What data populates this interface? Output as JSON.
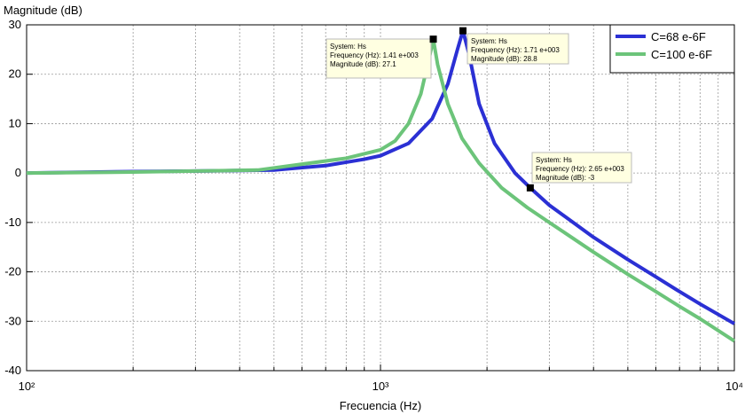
{
  "chart_data": {
    "type": "line",
    "ylabel": "Magnitude (dB)",
    "xlabel": "Frecuencia (Hz)",
    "xscale": "log",
    "grid": true,
    "legend": "upper right",
    "xlim": [
      100,
      10000
    ],
    "ylim": [
      -40,
      30
    ],
    "xticks": [
      {
        "value": 100,
        "label": "10²"
      },
      {
        "value": 1000,
        "label": "10³"
      },
      {
        "value": 10000,
        "label": "10⁴"
      }
    ],
    "xminorticks": [
      200,
      300,
      400,
      500,
      600,
      700,
      800,
      900,
      2000,
      3000,
      4000,
      5000,
      6000,
      7000,
      8000,
      9000
    ],
    "yticks": [
      -40,
      -30,
      -20,
      -10,
      0,
      10,
      20,
      30
    ],
    "series": [
      {
        "name": "C=68 e-6F",
        "color": "#2b30d4",
        "x": [
          100,
          200,
          300,
          500,
          700,
          900,
          1000,
          1200,
          1400,
          1550,
          1650,
          1710,
          1780,
          1900,
          2100,
          2400,
          2650,
          3000,
          4000,
          5000,
          6000,
          7000,
          8000,
          10000
        ],
        "values": [
          0,
          0.3,
          0.4,
          0.6,
          1.5,
          2.8,
          3.5,
          6,
          11,
          18,
          25,
          28.8,
          24,
          14,
          6,
          0,
          -3,
          -6.5,
          -13,
          -17.5,
          -21,
          -24,
          -26.5,
          -30.5
        ]
      },
      {
        "name": "C=100 e-6F",
        "color": "#6cc47a",
        "x": [
          100,
          200,
          300,
          450,
          600,
          800,
          1000,
          1100,
          1200,
          1300,
          1380,
          1410,
          1450,
          1550,
          1700,
          1900,
          2200,
          2600,
          3000,
          4000,
          5000,
          6000,
          7000,
          8000,
          10000
        ],
        "values": [
          0,
          0.2,
          0.4,
          0.6,
          1.8,
          3,
          4.7,
          6.5,
          10,
          16,
          24,
          27.1,
          22,
          14,
          7,
          2,
          -3,
          -7,
          -10,
          -16,
          -20.5,
          -24,
          -27,
          -29.5,
          -34
        ]
      }
    ],
    "annotations": [
      {
        "lines": [
          "System: Hs",
          "Frequency (Hz): 1.41 e+003",
          "Magnitude (dB): 27.1"
        ]
      },
      {
        "lines": [
          "System: Hs",
          "Frequency (Hz): 1.71 e+003",
          "Magnitude (dB): 28.8"
        ]
      },
      {
        "lines": [
          "System: Hs",
          "Frequency (Hz): 2.65 e+003",
          "Magnitude (dB): -3"
        ]
      }
    ]
  }
}
